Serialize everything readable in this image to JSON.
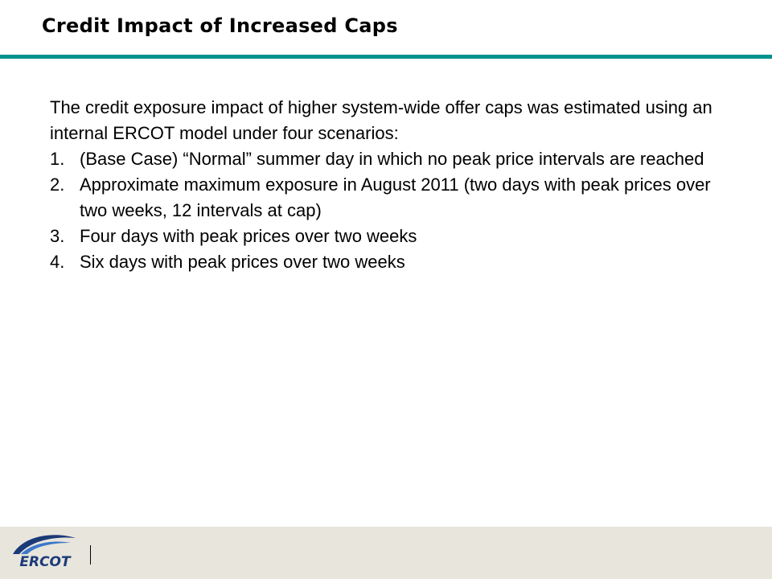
{
  "slide": {
    "title": "Credit Impact of Increased Caps"
  },
  "body": {
    "intro": "The credit exposure impact of higher system-wide offer caps was estimated using an internal ERCOT model under four scenarios:",
    "scenarios": [
      {
        "number": "1.",
        "text": "(Base Case) “Normal” summer day in which no peak price intervals are reached"
      },
      {
        "number": "2.",
        "text": "Approximate maximum exposure in August 2011 (two days with peak prices over two weeks, 12 intervals at cap)"
      },
      {
        "number": "3.",
        "text": "Four days with peak prices over two weeks"
      },
      {
        "number": "4.",
        "text": "Six days with peak prices over two weeks"
      }
    ]
  },
  "footer": {
    "logo_text": "ERCOT"
  },
  "colors": {
    "accent_rule": "#00928f",
    "footer_bg": "#e8e5dd",
    "logo_navy": "#1b3a78",
    "logo_blue": "#3a78c9"
  }
}
